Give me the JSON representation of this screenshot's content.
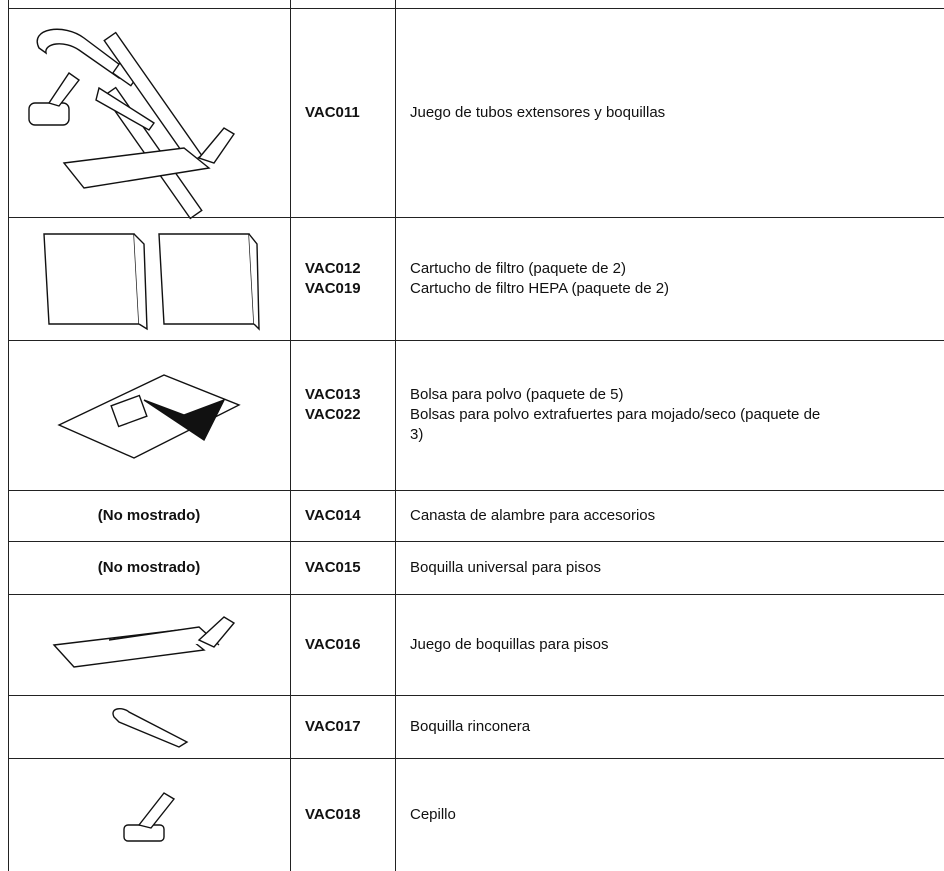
{
  "table": {
    "rows": [
      {
        "codes": [
          "VAC011"
        ],
        "descriptions": [
          "Juego de tubos extensores y boquillas"
        ]
      },
      {
        "codes": [
          "VAC012",
          "VAC019"
        ],
        "descriptions": [
          "Cartucho de filtro (paquete de 2)",
          "Cartucho de filtro HEPA (paquete de 2)"
        ]
      },
      {
        "codes": [
          "VAC013",
          "VAC022"
        ],
        "descriptions": [
          "Bolsa para polvo (paquete de 5)",
          "Bolsas para polvo extrafuertes para mojado/seco (paquete de 3)"
        ]
      },
      {
        "image_note": "(No mostrado)",
        "codes": [
          "VAC014"
        ],
        "descriptions": [
          "Canasta de alambre para accesorios"
        ]
      },
      {
        "image_note": "(No mostrado)",
        "codes": [
          "VAC015"
        ],
        "descriptions": [
          "Boquilla universal para pisos"
        ]
      },
      {
        "codes": [
          "VAC016"
        ],
        "descriptions": [
          "Juego de boquillas para pisos"
        ]
      },
      {
        "codes": [
          "VAC017"
        ],
        "descriptions": [
          "Boquilla rinconera"
        ]
      },
      {
        "codes": [
          "VAC018"
        ],
        "descriptions": [
          "Cepillo"
        ]
      }
    ]
  }
}
